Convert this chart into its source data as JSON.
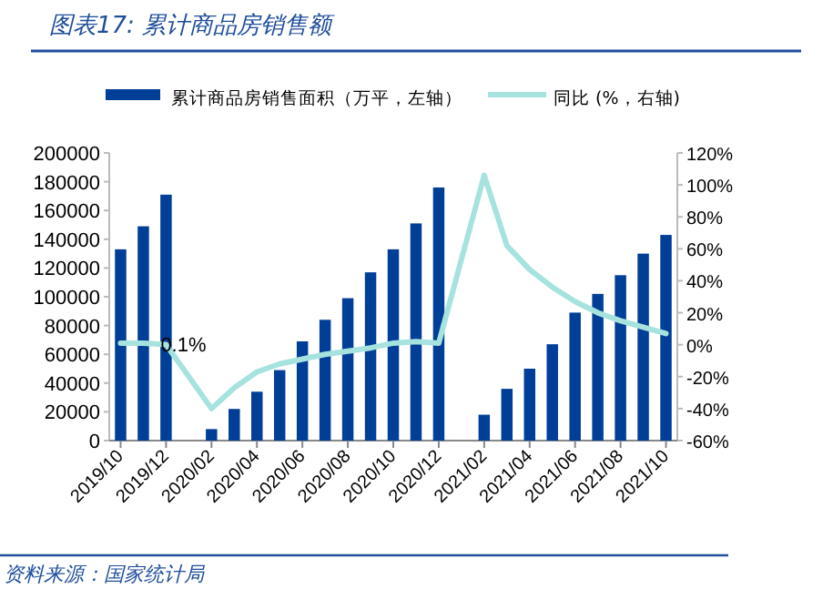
{
  "chart_data": {
    "type": "bar",
    "title": "图表17:   累计商品房销售额",
    "categories": [
      "2019/10",
      null,
      "2019/12",
      null,
      "2020/02",
      null,
      "2020/04",
      null,
      "2020/06",
      null,
      "2020/08",
      null,
      "2020/10",
      null,
      "2020/12",
      null,
      "2021/02",
      null,
      "2021/04",
      null,
      "2021/06",
      null,
      "2021/08",
      null,
      "2021/10"
    ],
    "series": [
      {
        "name": "累计商品房销售面积（万平，左轴）",
        "color": "#003f98",
        "values": [
          133000,
          149000,
          171000,
          null,
          8000,
          22000,
          34000,
          49000,
          69000,
          84000,
          99000,
          117000,
          133000,
          151000,
          176000,
          null,
          18000,
          36000,
          50000,
          67000,
          89000,
          102000,
          115000,
          130000,
          143000
        ]
      },
      {
        "name": "同比 (%，右轴)",
        "type": "line",
        "axis": "y2",
        "color": "#a6e3df",
        "values": [
          1,
          1,
          0.1,
          null,
          -40,
          -27,
          -17,
          -12,
          -9,
          -6,
          -4,
          -2,
          1,
          2,
          1,
          null,
          106,
          62,
          47,
          36,
          27,
          20,
          15,
          11,
          7
        ],
        "value_labels": [
          null,
          null,
          "0.1%",
          null,
          null,
          null,
          null,
          null,
          null,
          null,
          null,
          null,
          null,
          null,
          null,
          null,
          null,
          null,
          null,
          null,
          null,
          null,
          null,
          null,
          null
        ]
      }
    ],
    "ylim": [
      0,
      200000
    ],
    "yticks": [
      0,
      20000,
      40000,
      60000,
      80000,
      100000,
      120000,
      140000,
      160000,
      180000,
      200000
    ],
    "y2lim": [
      -60,
      120
    ],
    "y2ticks": [
      {
        "value": -60,
        "label": "-60%"
      },
      {
        "value": -40,
        "label": "-40%"
      },
      {
        "value": -20,
        "label": "-20%"
      },
      {
        "value": 0,
        "label": "0%"
      },
      {
        "value": 20,
        "label": "20%"
      },
      {
        "value": 40,
        "label": "40%"
      },
      {
        "value": 60,
        "label": "60%"
      },
      {
        "value": 80,
        "label": "80%"
      },
      {
        "value": 100,
        "label": "100%"
      },
      {
        "value": 120,
        "label": "120%"
      }
    ],
    "legend": "top",
    "grid": false,
    "annotations": [
      "资料来源：国家统计局"
    ]
  }
}
